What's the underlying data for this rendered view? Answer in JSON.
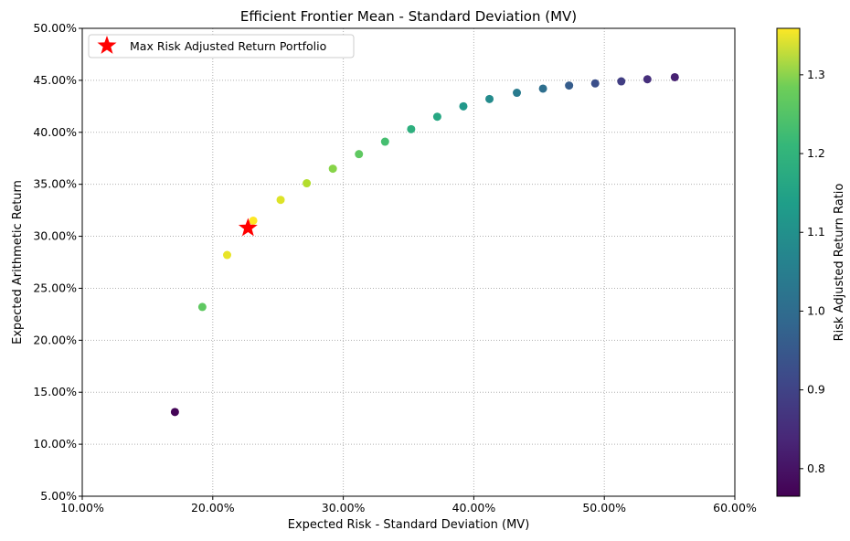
{
  "chart_data": {
    "type": "scatter",
    "title": "Efficient Frontier Mean - Standard Deviation (MV)",
    "xlabel": "Expected Risk - Standard Deviation (MV)",
    "ylabel": "Expected Arithmetic Return",
    "xlim": [
      10,
      60
    ],
    "ylim": [
      5,
      50
    ],
    "xticks": [
      "10.00%",
      "20.00%",
      "30.00%",
      "40.00%",
      "50.00%",
      "60.00%"
    ],
    "yticks": [
      "5.00%",
      "10.00%",
      "15.00%",
      "20.00%",
      "25.00%",
      "30.00%",
      "35.00%",
      "40.00%",
      "45.00%",
      "50.00%"
    ],
    "grid": true,
    "points": [
      {
        "x": 17.1,
        "y": 13.1,
        "ratio": 0.77
      },
      {
        "x": 19.2,
        "y": 23.2,
        "ratio": 1.21
      },
      {
        "x": 21.1,
        "y": 28.2,
        "ratio": 1.34
      },
      {
        "x": 23.1,
        "y": 31.5,
        "ratio": 1.36
      },
      {
        "x": 25.2,
        "y": 33.5,
        "ratio": 1.33
      },
      {
        "x": 27.2,
        "y": 35.1,
        "ratio": 1.29
      },
      {
        "x": 29.2,
        "y": 36.5,
        "ratio": 1.25
      },
      {
        "x": 31.2,
        "y": 37.9,
        "ratio": 1.21
      },
      {
        "x": 33.2,
        "y": 39.1,
        "ratio": 1.18
      },
      {
        "x": 35.2,
        "y": 40.3,
        "ratio": 1.14
      },
      {
        "x": 37.2,
        "y": 41.5,
        "ratio": 1.12
      },
      {
        "x": 39.2,
        "y": 42.5,
        "ratio": 1.08
      },
      {
        "x": 41.2,
        "y": 43.2,
        "ratio": 1.05
      },
      {
        "x": 43.3,
        "y": 43.8,
        "ratio": 1.01
      },
      {
        "x": 45.3,
        "y": 44.2,
        "ratio": 0.98
      },
      {
        "x": 47.3,
        "y": 44.5,
        "ratio": 0.94
      },
      {
        "x": 49.3,
        "y": 44.7,
        "ratio": 0.91
      },
      {
        "x": 51.3,
        "y": 44.9,
        "ratio": 0.875
      },
      {
        "x": 53.3,
        "y": 45.1,
        "ratio": 0.846
      },
      {
        "x": 55.4,
        "y": 45.3,
        "ratio": 0.82
      }
    ],
    "highlight": {
      "label": "Max Risk Adjusted Return Portfolio",
      "x": 22.7,
      "y": 30.8,
      "color": "#ff0000"
    },
    "legend_position": "top-left",
    "colorbar": {
      "label": "Risk Adjusted Return Ratio",
      "range": [
        0.765,
        1.359
      ],
      "colormap": "viridis",
      "ticks": [
        0.8,
        0.9,
        1.0,
        1.1,
        1.2,
        1.3
      ],
      "tick_labels": [
        "0.8",
        "0.9",
        "1.0",
        "1.1",
        "1.2",
        "1.3"
      ]
    }
  }
}
